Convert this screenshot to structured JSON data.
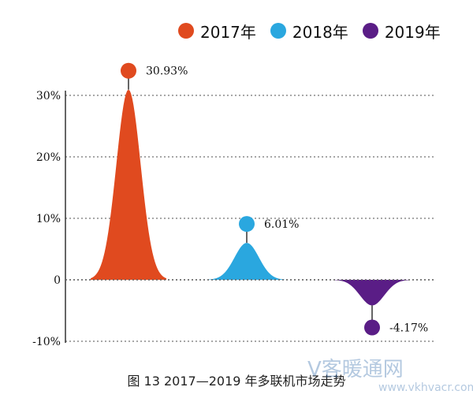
{
  "chart_data": {
    "type": "bar",
    "categories": [
      "2017年",
      "2018年",
      "2019年"
    ],
    "values": [
      30.93,
      6.01,
      -4.17
    ],
    "value_labels": [
      "30.93%",
      "6.01%",
      "-4.17%"
    ],
    "ylim": [
      -10,
      30
    ],
    "yticks": [
      30,
      20,
      10,
      0,
      -10
    ],
    "ytick_labels": [
      "30%",
      "20%",
      "10%",
      "0",
      "-10%"
    ],
    "grid": true,
    "legend": {
      "placement": "top-right",
      "entries": [
        {
          "name": "2017年",
          "color": "#e04a1f"
        },
        {
          "name": "2018年",
          "color": "#2aa7df"
        },
        {
          "name": "2019年",
          "color": "#5a1d86"
        }
      ]
    }
  },
  "caption": "图 13 2017—2019 年多联机市场走势",
  "watermark": {
    "text": "V客暖通网",
    "url": "www.vkhvacr.com"
  }
}
